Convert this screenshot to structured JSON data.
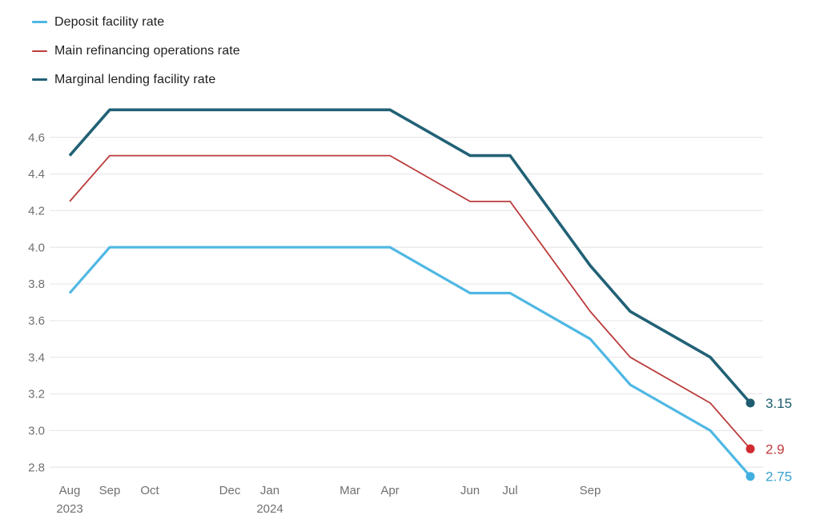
{
  "colors": {
    "background": "#ffffff",
    "grid": "#eaeaea",
    "tick_text": "#707070",
    "legend_text": "#1e1e1e"
  },
  "chart_data": {
    "type": "line",
    "title": "",
    "xlabel": "",
    "ylabel": "",
    "grid": "horizontal",
    "legend_position": "top-left",
    "x_axis": {
      "unit": "month",
      "start": "Aug 2023",
      "end": "Jan 2025",
      "ticks": [
        {
          "month": 0,
          "label": "Aug",
          "year": "2023"
        },
        {
          "month": 1,
          "label": "Sep"
        },
        {
          "month": 2,
          "label": "Oct"
        },
        {
          "month": 4,
          "label": "Dec"
        },
        {
          "month": 5,
          "label": "Jan",
          "year": "2024"
        },
        {
          "month": 7,
          "label": "Mar"
        },
        {
          "month": 8,
          "label": "Apr"
        },
        {
          "month": 10,
          "label": "Jun"
        },
        {
          "month": 11,
          "label": "Jul"
        },
        {
          "month": 13,
          "label": "Sep"
        }
      ]
    },
    "y_axis": {
      "range": [
        2.75,
        4.75
      ],
      "ticks": [
        {
          "value": 4.6,
          "label": "4.6"
        },
        {
          "value": 4.4,
          "label": "4.4"
        },
        {
          "value": 4.2,
          "label": "4.2"
        },
        {
          "value": 4.0,
          "label": "4.0"
        },
        {
          "value": 3.8,
          "label": "3.8"
        },
        {
          "value": 3.6,
          "label": "3.6"
        },
        {
          "value": 3.4,
          "label": "3.4"
        },
        {
          "value": 3.2,
          "label": "3.2"
        },
        {
          "value": 3.0,
          "label": "3.0"
        },
        {
          "value": 2.8,
          "label": "2.8"
        }
      ]
    },
    "series": [
      {
        "key": "deposit",
        "name": "Deposit facility rate",
        "color": "#4fb8e3",
        "dot_color": "#42afe1",
        "label_color": "#35a3cd",
        "line_width": 3.2,
        "end_label": "2.75",
        "points": [
          [
            0,
            3.75
          ],
          [
            1,
            4.0
          ],
          [
            2,
            4.0
          ],
          [
            4,
            4.0
          ],
          [
            5,
            4.0
          ],
          [
            7,
            4.0
          ],
          [
            8,
            4.0
          ],
          [
            10,
            3.75
          ],
          [
            11,
            3.75
          ],
          [
            13,
            3.5
          ],
          [
            14,
            3.25
          ],
          [
            16,
            3.0
          ],
          [
            17,
            2.75
          ]
        ]
      },
      {
        "key": "mro",
        "name": "Main refinancing operations rate",
        "color": "#bb3b3b",
        "dot_color": "#d02b2f",
        "label_color": "#c2383a",
        "line_width": 1.8,
        "end_label": "2.9",
        "points": [
          [
            0,
            4.25
          ],
          [
            1,
            4.5
          ],
          [
            2,
            4.5
          ],
          [
            4,
            4.5
          ],
          [
            5,
            4.5
          ],
          [
            7,
            4.5
          ],
          [
            8,
            4.5
          ],
          [
            10,
            4.25
          ],
          [
            11,
            4.25
          ],
          [
            13,
            3.65
          ],
          [
            14,
            3.4
          ],
          [
            16,
            3.15
          ],
          [
            17,
            2.9
          ]
        ]
      },
      {
        "key": "mlf",
        "name": "Marginal lending facility rate",
        "color": "#216176",
        "dot_color": "#1e5c70",
        "label_color": "#1b5b6e",
        "line_width": 3.6,
        "end_label": "3.15",
        "points": [
          [
            0,
            4.5
          ],
          [
            1,
            4.75
          ],
          [
            2,
            4.75
          ],
          [
            4,
            4.75
          ],
          [
            5,
            4.75
          ],
          [
            7,
            4.75
          ],
          [
            8,
            4.75
          ],
          [
            10,
            4.5
          ],
          [
            11,
            4.5
          ],
          [
            13,
            3.9
          ],
          [
            14,
            3.65
          ],
          [
            16,
            3.4
          ],
          [
            17,
            3.15
          ]
        ]
      }
    ]
  }
}
